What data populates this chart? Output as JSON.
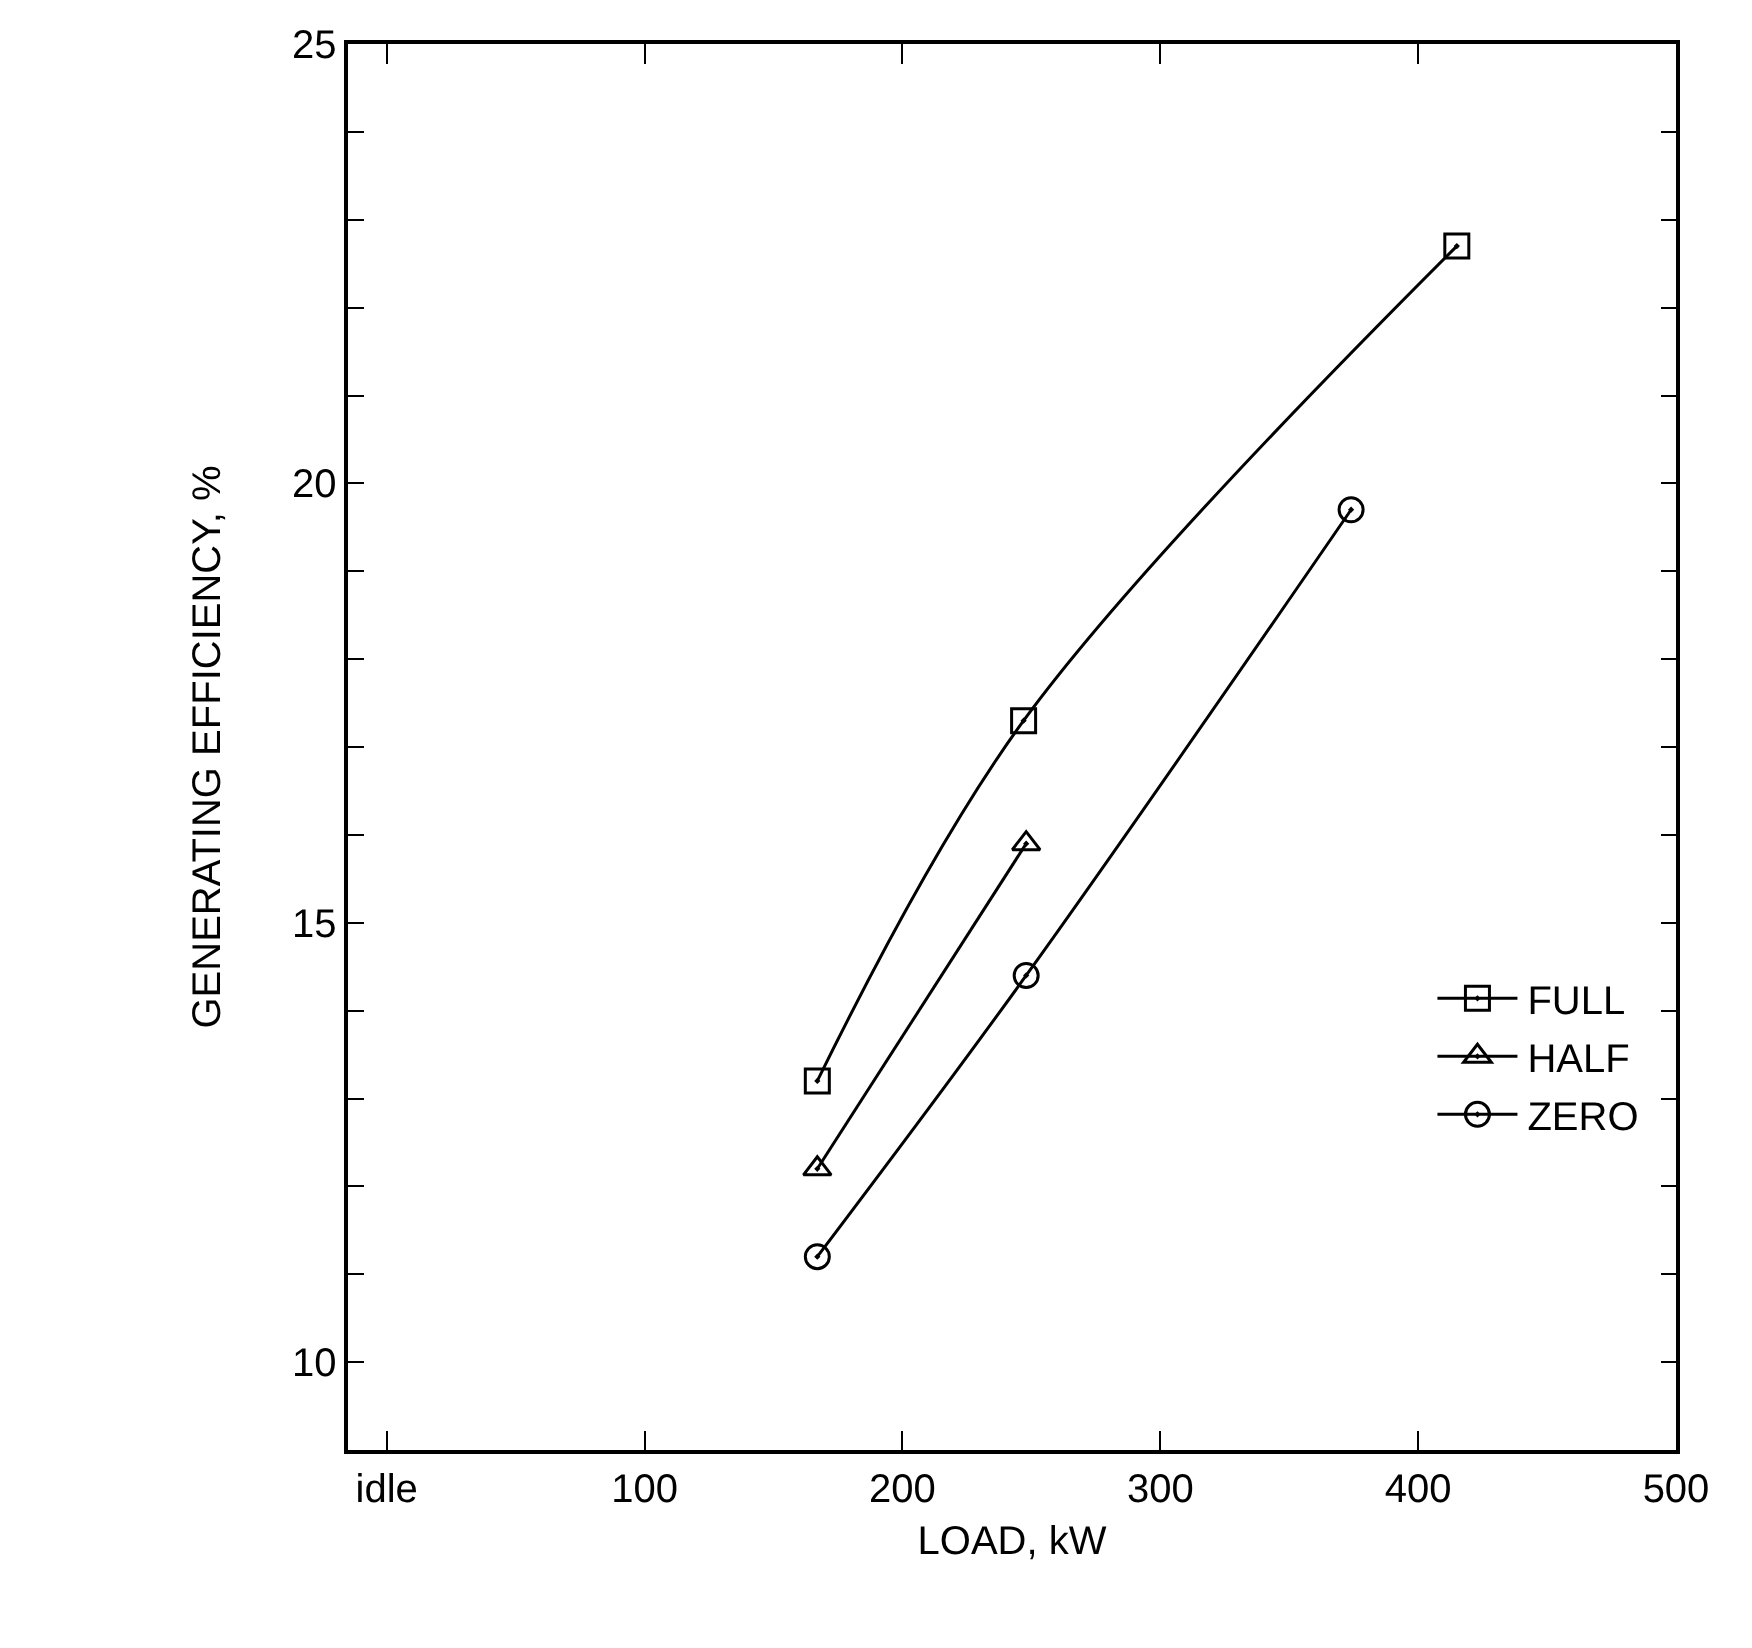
{
  "chart_data": {
    "type": "line",
    "xlabel": "LOAD, kW",
    "ylabel": "GENERATING EFFICIENCY, %",
    "xlim": [
      -15,
      500
    ],
    "ylim": [
      9,
      25
    ],
    "xticks": [
      {
        "value": 0,
        "label": "idle"
      },
      100,
      200,
      300,
      400,
      500
    ],
    "yticks": [
      {
        "value": 9,
        "label": null
      },
      10,
      {
        "value": 11,
        "label": null
      },
      {
        "value": 12,
        "label": null
      },
      {
        "value": 13,
        "label": null
      },
      {
        "value": 14,
        "label": null
      },
      15,
      {
        "value": 16,
        "label": null
      },
      {
        "value": 17,
        "label": null
      },
      {
        "value": 18,
        "label": null
      },
      {
        "value": 19,
        "label": null
      },
      20,
      {
        "value": 21,
        "label": null
      },
      {
        "value": 22,
        "label": null
      },
      {
        "value": 23,
        "label": null
      },
      {
        "value": 24,
        "label": null
      },
      25
    ],
    "legend": "right",
    "line_style": "solid",
    "series": [
      {
        "name": "FULL",
        "color": "#000000",
        "marker": "square",
        "x": [
          167,
          247,
          415
        ],
        "values": [
          13.2,
          17.3,
          22.7
        ]
      },
      {
        "name": "HALF",
        "color": "#000000",
        "marker": "triangle",
        "x": [
          167,
          248
        ],
        "values": [
          12.2,
          15.9
        ]
      },
      {
        "name": "ZERO",
        "color": "#000000",
        "marker": "circle",
        "x": [
          167,
          248,
          374
        ],
        "values": [
          11.2,
          14.4,
          19.7
        ]
      }
    ]
  }
}
